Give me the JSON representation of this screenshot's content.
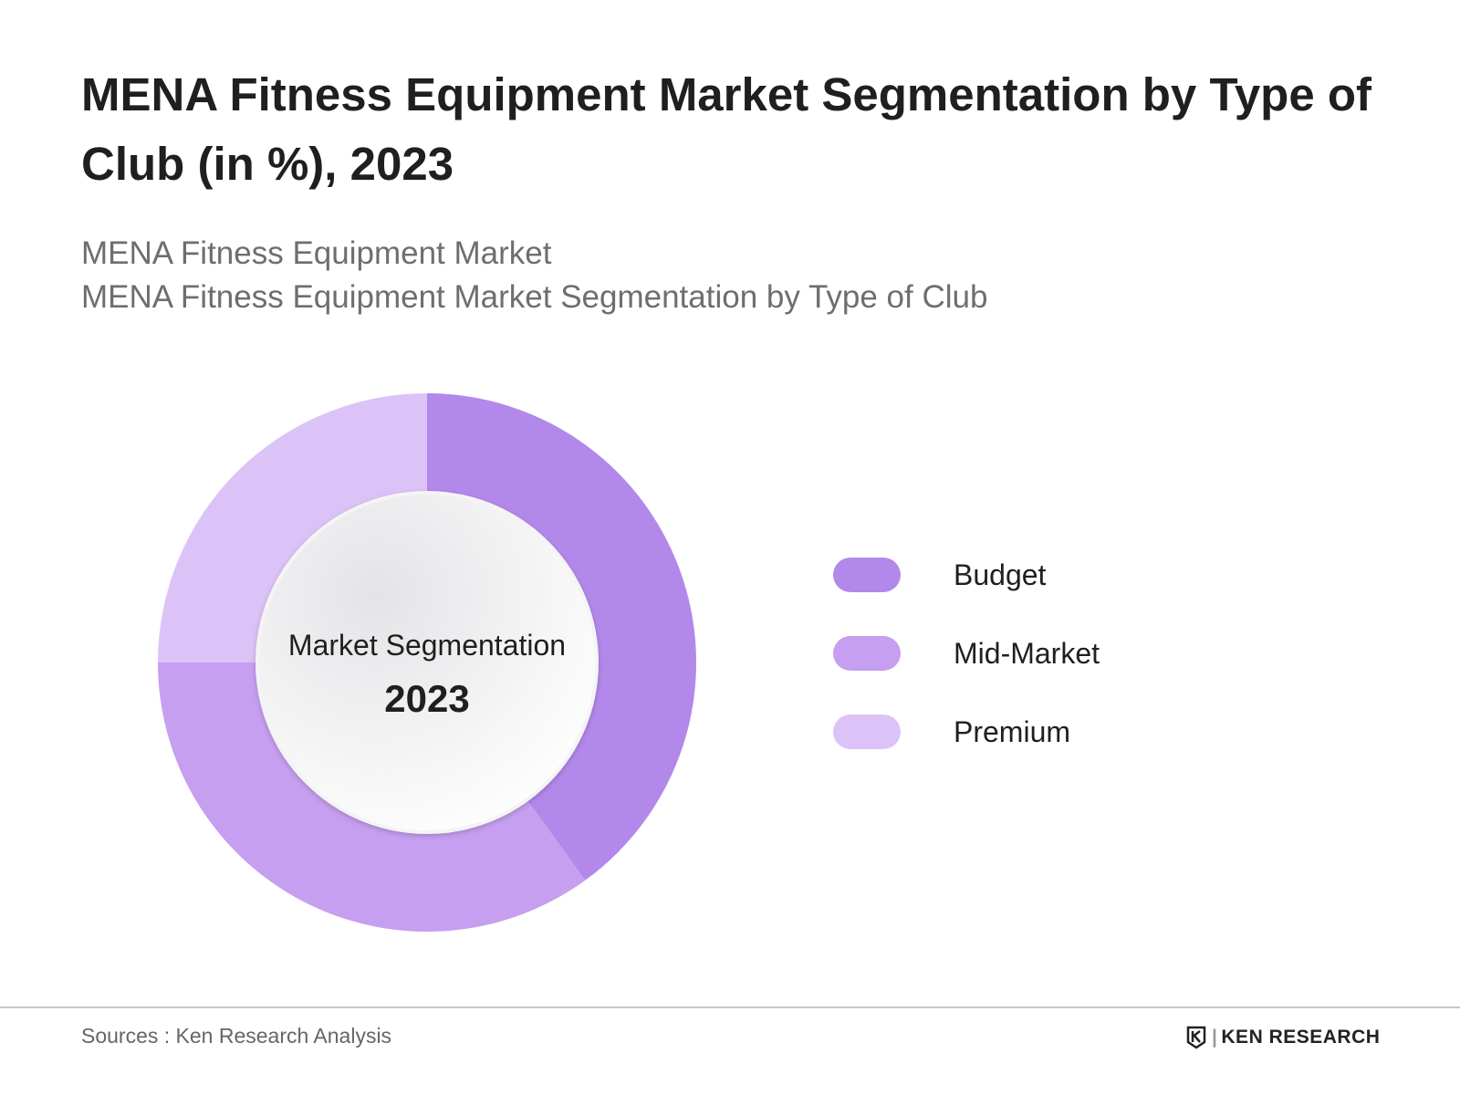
{
  "header": {
    "title": "MENA Fitness Equipment Market Segmentation by Type of Club (in %), 2023",
    "subtitle_1": "MENA Fitness Equipment Market",
    "subtitle_2": "MENA Fitness Equipment Market Segmentation by Type of Club"
  },
  "chart_data": {
    "type": "pie",
    "variant": "donut",
    "center_label": "Market Segmentation",
    "center_year": "2023",
    "categories": [
      "Budget",
      "Mid-Market",
      "Premium"
    ],
    "values": [
      40,
      35,
      25
    ],
    "colors": [
      "#b388eb",
      "#c69ff0",
      "#dcc3f7"
    ],
    "legend_position": "right"
  },
  "footer": {
    "sources": "Sources : Ken Research Analysis",
    "logo_text": "KEN RESEARCH"
  }
}
